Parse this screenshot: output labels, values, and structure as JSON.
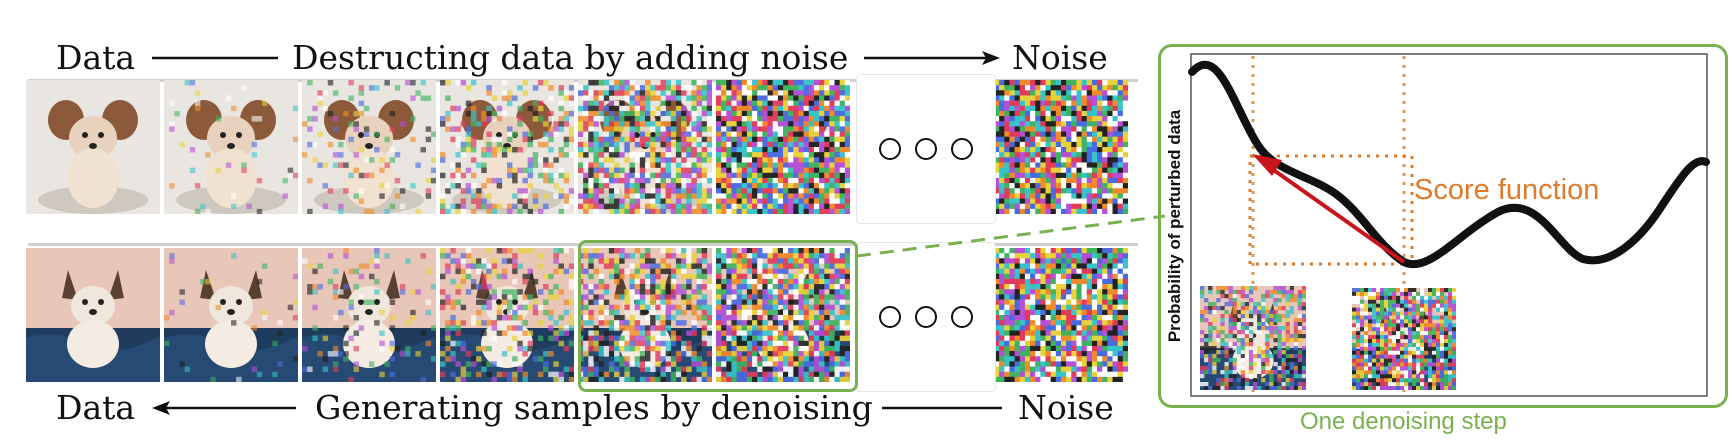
{
  "top_row": {
    "left_label": "Data",
    "middle_label": "Destructing data by adding noise",
    "right_label": "Noise"
  },
  "bottom_row": {
    "left_label": "Data",
    "middle_label": "Generating samples by denoising",
    "right_label": "Noise"
  },
  "zoom_panel": {
    "y_axis_label": "Probability of perturbed data",
    "annotation": "Score function",
    "caption": "One denoising step"
  },
  "colors": {
    "green": "#7ab04f",
    "orange": "#e07b2e",
    "red_arrow": "#c8151b",
    "curve": "#111111"
  },
  "noise_levels": {
    "top_row": [
      0,
      0.05,
      0.15,
      0.35,
      0.7,
      0.95,
      1.0
    ],
    "bottom_row": [
      0,
      0.05,
      0.15,
      0.35,
      0.6,
      0.85,
      1.0
    ]
  }
}
